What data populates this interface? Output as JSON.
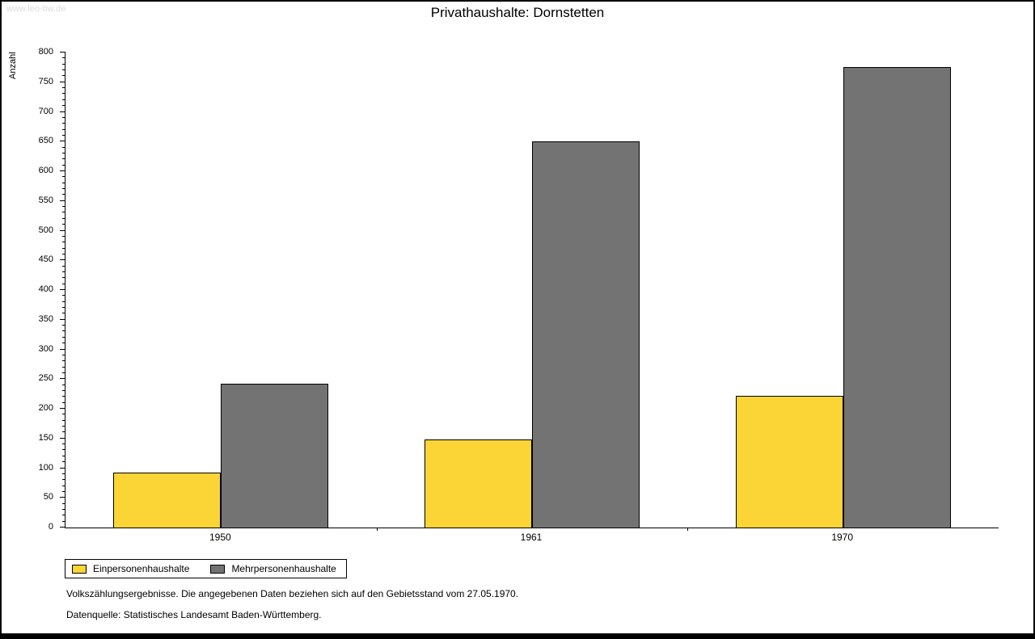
{
  "watermark": "www.leo-bw.de",
  "title": "Privathaushalte: Dornstetten",
  "chart_data": {
    "type": "bar",
    "title": "Privathaushalte: Dornstetten",
    "categories": [
      "1950",
      "1961",
      "1970"
    ],
    "series": [
      {
        "name": "Einpersonenhaushalte",
        "color": "#fbd535",
        "values": [
          93,
          148,
          222
        ]
      },
      {
        "name": "Mehrpersonenhaushalte",
        "color": "#737373",
        "values": [
          242,
          650,
          776
        ]
      }
    ],
    "xlabel": "",
    "ylabel": "Anzahl",
    "ylim": [
      0,
      800
    ],
    "ytick_step": 50,
    "minor_tick_step": 10,
    "grid": false,
    "legend_position": "bottom-left"
  },
  "footer": {
    "note1": "Volkszählungsergebnisse. Die angegebenen Daten beziehen sich auf den Gebietsstand vom 27.05.1970.",
    "note2": "Datenquelle: Statistisches Landesamt Baden-Württemberg."
  }
}
